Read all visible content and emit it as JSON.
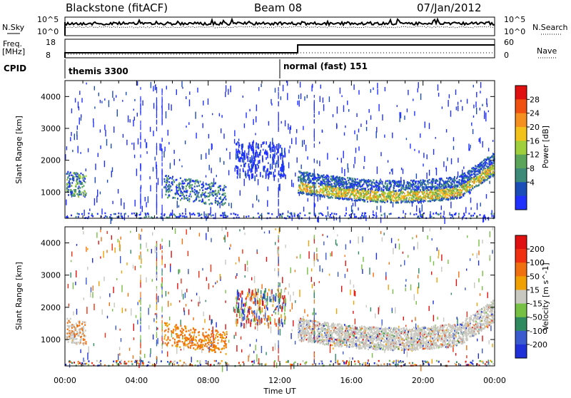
{
  "header": {
    "station": "Blackstone (fitACF)",
    "beam": "Beam 08",
    "date": "07/Jan/2012"
  },
  "time_axis": {
    "label": "Time UT",
    "ticks": [
      "00:00",
      "04:00",
      "08:00",
      "12:00",
      "16:00",
      "20:00",
      "00:00"
    ],
    "range_hours": [
      0,
      24
    ]
  },
  "nsky_panel": {
    "left_label": "N.Sky",
    "left_ticks": [
      "10^5",
      "10^0"
    ],
    "right_label": "N.Search",
    "right_ticks": [
      "10^5",
      "10^0"
    ]
  },
  "freq_panel": {
    "left_label_1": "Freq.",
    "left_label_2": "[MHz]",
    "left_ticks": [
      "18",
      "8"
    ],
    "right_label": "Nave",
    "right_ticks": [
      "60",
      "0"
    ],
    "switch_hour": 13.0
  },
  "cpid": {
    "label": "CPID",
    "modes": [
      {
        "name": "themis 3300",
        "start_hour": 0
      },
      {
        "name": "normal (fast) 151",
        "start_hour": 12.0
      }
    ]
  },
  "chart_data": [
    {
      "type": "heatmap",
      "panel": "power",
      "ylabel": "Slant Range [km]",
      "yticks": [
        1000,
        2000,
        3000,
        4000
      ],
      "ylim": [
        180,
        4500
      ],
      "xlim": [
        0,
        24
      ],
      "colorbar": {
        "label": "Power [dB]",
        "ticks": [
          "4",
          "8",
          "12",
          "16",
          "20",
          "24",
          "28"
        ],
        "colors": [
          "#2030ff",
          "#1b4db8",
          "#3d8a78",
          "#5aa55a",
          "#9fcf3a",
          "#f2c21a",
          "#f59020",
          "#f05010",
          "#e01010"
        ]
      }
    },
    {
      "type": "heatmap",
      "panel": "velocity",
      "ylabel": "Slant Range [km]",
      "yticks": [
        1000,
        2000,
        3000,
        4000
      ],
      "ylim": [
        180,
        4500
      ],
      "xlim": [
        0,
        24
      ],
      "colorbar": {
        "label": "Velocity [m s^-1]",
        "ticks": [
          "200",
          "100",
          "50",
          "15",
          "-15",
          "-50",
          "-100",
          "-200"
        ],
        "colors": [
          "#2030d8",
          "#3a5ad0",
          "#2f8a60",
          "#76c043",
          "#c8c8c0",
          "#f0a000",
          "#f07010",
          "#f03010",
          "#e01010"
        ]
      }
    }
  ]
}
